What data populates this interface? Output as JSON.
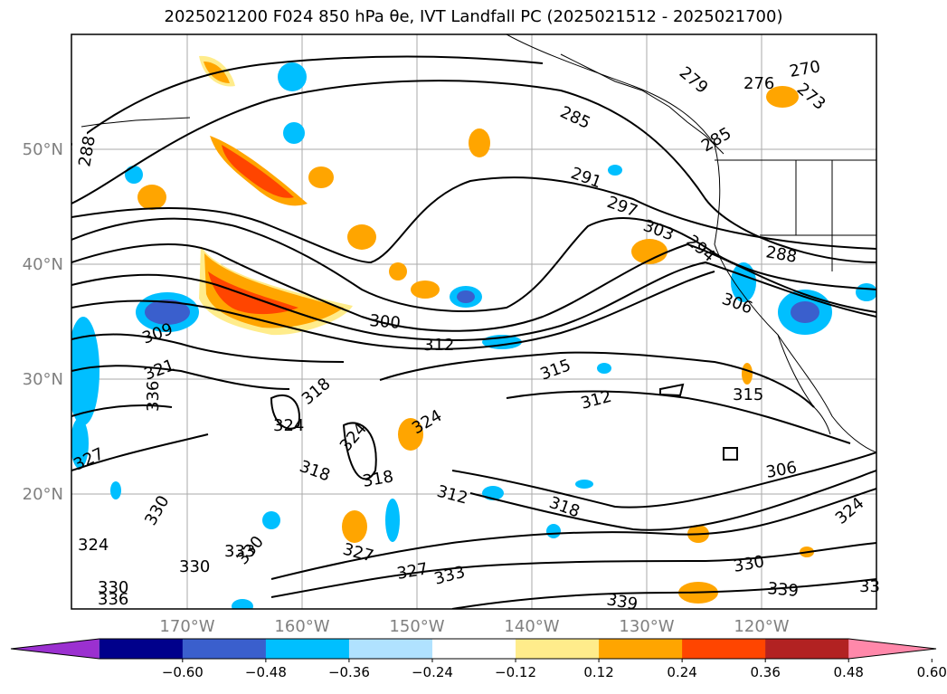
{
  "title": "2025021200 F024 850 hPa θe, IVT Landfall PC (2025021512 - 2025021700)",
  "map": {
    "lat_labels": [
      "50°N",
      "40°N",
      "30°N",
      "20°N"
    ],
    "lon_labels": [
      "170°W",
      "160°W",
      "150°W",
      "140°W",
      "130°W",
      "120°W"
    ]
  },
  "contour_labels": [
    "288",
    "285",
    "279",
    "276",
    "270",
    "273",
    "285",
    "291",
    "297",
    "303",
    "294",
    "288",
    "306",
    "300",
    "312",
    "309",
    "321",
    "315",
    "315",
    "312",
    "318",
    "324",
    "324",
    "324",
    "318",
    "318",
    "312",
    "318",
    "306",
    "324",
    "336",
    "327",
    "330",
    "324",
    "333",
    "330",
    "330",
    "327",
    "327",
    "333",
    "330",
    "330",
    "336",
    "339",
    "339",
    "33"
  ],
  "colorbar": {
    "tick_labels": [
      "−0.60",
      "−0.48",
      "−0.36",
      "−0.24",
      "−0.12",
      "0.12",
      "0.24",
      "0.36",
      "0.48",
      "0.60"
    ],
    "colors": [
      "#9b30d0",
      "#00008b",
      "#3a5fcd",
      "#00bfff",
      "#b0e2ff",
      "#ffffff",
      "#ffec8b",
      "#ffa500",
      "#ff4500",
      "#b22222",
      "#ff88aa"
    ],
    "extend": "both"
  }
}
